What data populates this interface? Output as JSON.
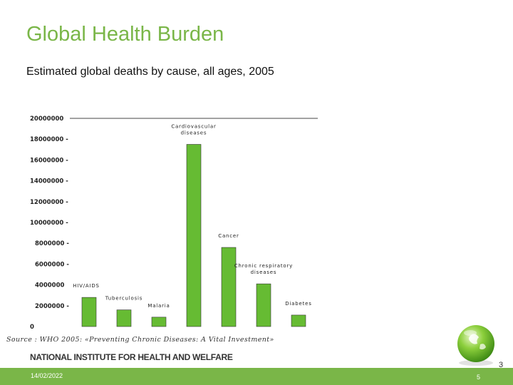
{
  "slide": {
    "title": "Global Health Burden",
    "subtitle": "Estimated global deaths by cause, all ages, 2005",
    "source": "Source : WHO 2005: «Preventing Chronic Diseases: A Vital Investment»",
    "institute": "NATIONAL INSTITUTE FOR HEALTH AND WELFARE",
    "page_number_top": "3",
    "footer_date": "14/02/2022",
    "footer_page": "5"
  },
  "colors": {
    "accent": "#7ab648",
    "bar": "#66bb33",
    "bar_border": "#333333"
  },
  "chart_data": {
    "type": "bar",
    "title": "",
    "xlabel": "",
    "ylabel": "",
    "ylim": [
      0,
      20000000
    ],
    "y_ticks": [
      {
        "value": 0,
        "label": "0"
      },
      {
        "value": 2000000,
        "label": "2000000 -"
      },
      {
        "value": 4000000,
        "label": "4000000"
      },
      {
        "value": 6000000,
        "label": "6000000 -"
      },
      {
        "value": 8000000,
        "label": "8000000 -"
      },
      {
        "value": 10000000,
        "label": "10000000 -"
      },
      {
        "value": 12000000,
        "label": "12000000 -"
      },
      {
        "value": 14000000,
        "label": "14000000 -"
      },
      {
        "value": 16000000,
        "label": "16000000 -"
      },
      {
        "value": 18000000,
        "label": "18000000 -"
      },
      {
        "value": 20000000,
        "label": "20000000"
      }
    ],
    "bars": [
      {
        "label_lines": [
          "HIV/AIDS"
        ],
        "value": 2800000
      },
      {
        "label_lines": [
          "Tuberculosis"
        ],
        "value": 1600000
      },
      {
        "label_lines": [
          "Malaria"
        ],
        "value": 900000
      },
      {
        "label_lines": [
          "Cardiovascular",
          "diseases"
        ],
        "value": 17500000
      },
      {
        "label_lines": [
          "Cancer"
        ],
        "value": 7600000
      },
      {
        "label_lines": [
          "Chronic respiratory",
          "diseases"
        ],
        "value": 4100000
      },
      {
        "label_lines": [
          "Diabetes"
        ],
        "value": 1100000
      }
    ]
  }
}
